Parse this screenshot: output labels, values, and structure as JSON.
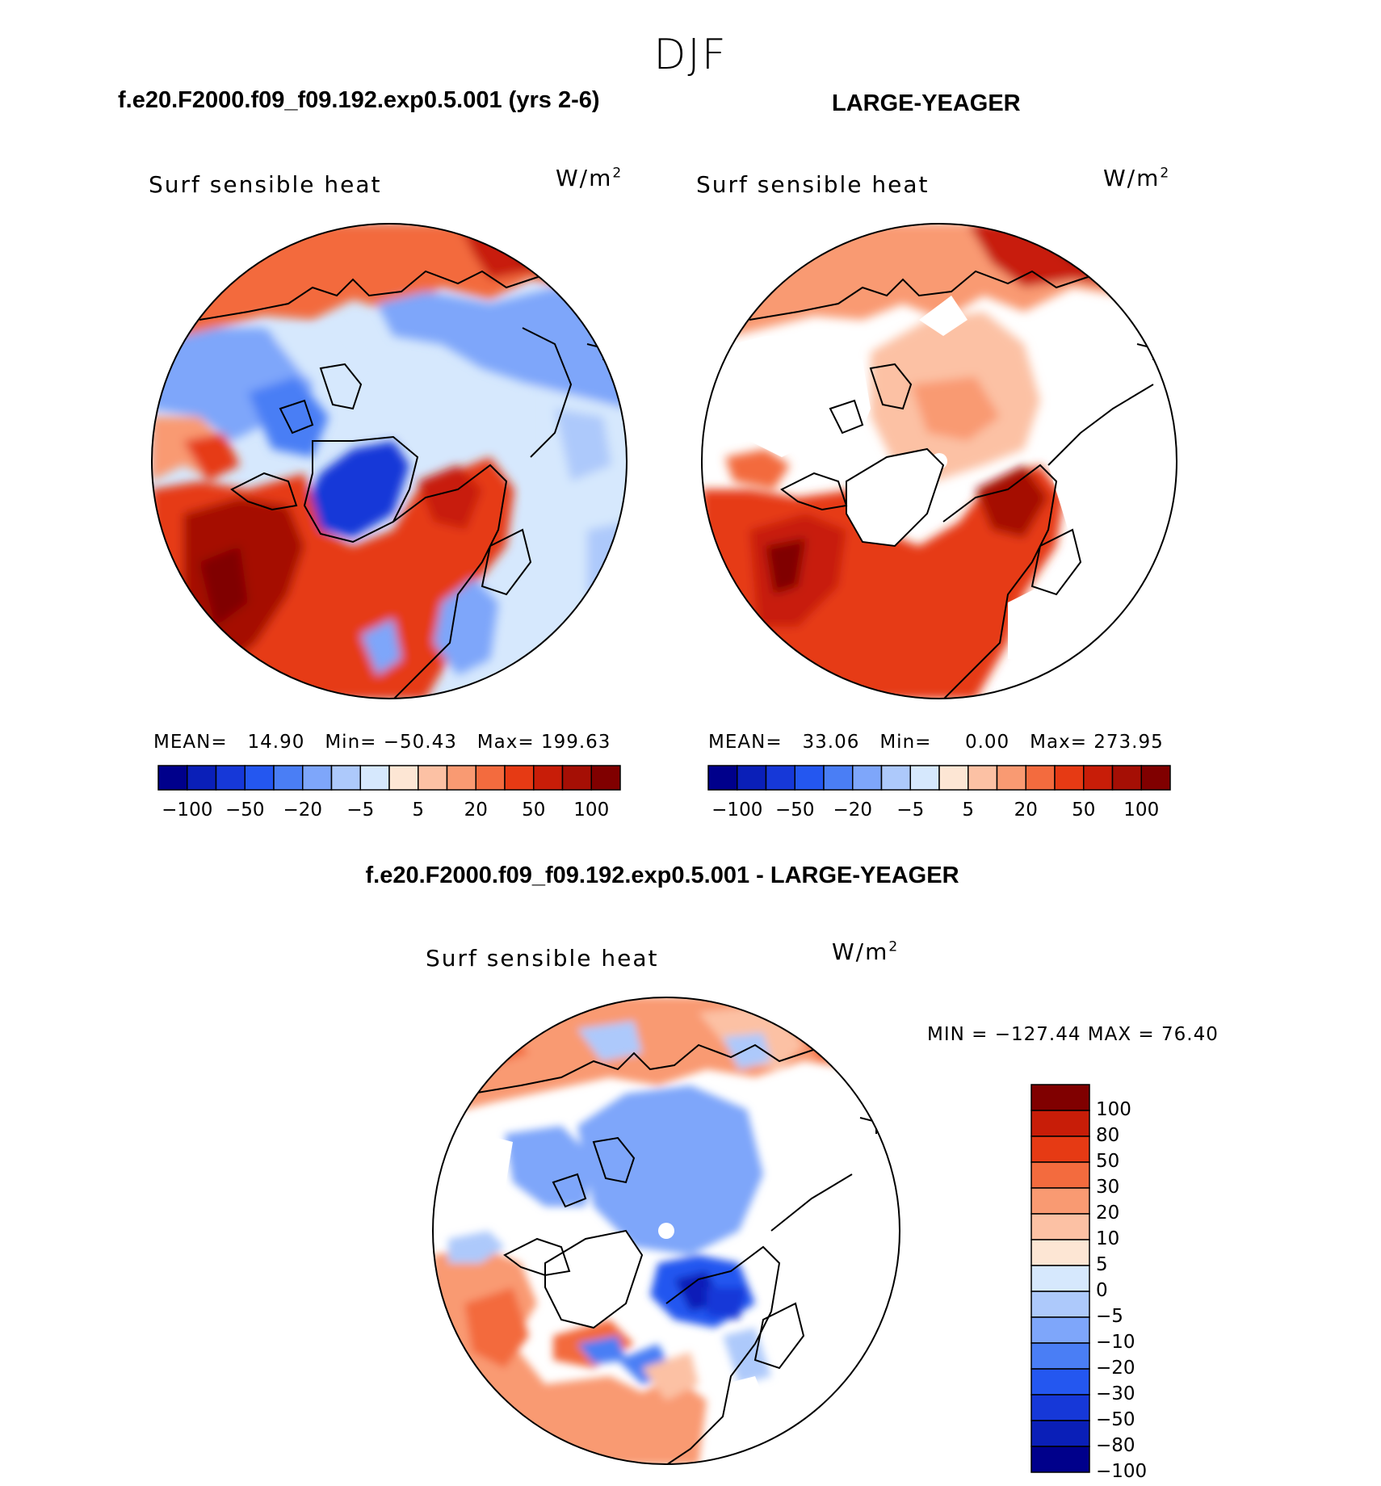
{
  "figure": {
    "season": "DJF",
    "variable": "Surf sensible heat",
    "units_base": "W/m",
    "units_exp": "2"
  },
  "panels": [
    {
      "title": "f.e20.F2000.f09_f09.192.exp0.5.001 (yrs 2-6)",
      "mean_label": "MEAN=",
      "mean": "14.90",
      "min_label": "Min=",
      "min": "−50.43",
      "max_label": "Max=",
      "max": "199.63"
    },
    {
      "title": "LARGE-YEAGER",
      "mean_label": "MEAN=",
      "mean": "33.06",
      "min_label": "Min=",
      "min": "0.00",
      "max_label": "Max=",
      "max": "273.95"
    },
    {
      "title": "f.e20.F2000.f09_f09.192.exp0.5.001 - LARGE-YEAGER",
      "minmax_text": "MIN = −127.44 MAX =   76.40"
    }
  ],
  "colorbar_abs": {
    "colors": [
      "#00008b",
      "#0a1fb8",
      "#1638d8",
      "#2457f0",
      "#4a7ef5",
      "#7ea6fa",
      "#adc9fb",
      "#d6e8fd",
      "#fde6d4",
      "#fcc1a4",
      "#f99a72",
      "#f36b3e",
      "#e63a14",
      "#c81d08",
      "#a50f05",
      "#800000"
    ],
    "tick_labels": [
      "−100",
      "−50",
      "−20",
      "−5",
      "5",
      "20",
      "50",
      "100"
    ]
  },
  "colorbar_diff": {
    "colors": [
      "#00008b",
      "#0a1fb8",
      "#1638d8",
      "#2457f0",
      "#4a7ef5",
      "#7ea6fa",
      "#adc9fb",
      "#d6e8fd",
      "#fde6d4",
      "#fcc1a4",
      "#f99a72",
      "#f36b3e",
      "#e63a14",
      "#c81d08",
      "#800000"
    ],
    "tick_labels": [
      "100",
      "80",
      "50",
      "30",
      "20",
      "10",
      "5",
      "0",
      "−5",
      "−10",
      "−20",
      "−30",
      "−50",
      "−80",
      "−100"
    ]
  }
}
